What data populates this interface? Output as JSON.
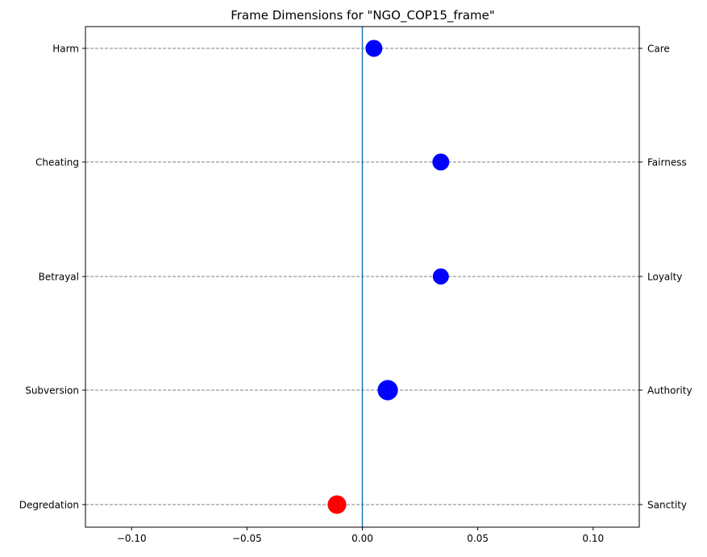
{
  "chart_data": {
    "type": "scatter",
    "title": "Frame Dimensions for \"NGO_COP15_frame\"",
    "xlabel": "",
    "ylabel": "",
    "xlim": [
      -0.12,
      0.12
    ],
    "xticks": [
      -0.1,
      -0.05,
      0.0,
      0.05,
      0.1
    ],
    "xtick_labels": [
      "−0.10",
      "−0.05",
      "0.00",
      "0.05",
      "0.10"
    ],
    "grid": "horizontal dashed lines at each dimension",
    "reference_line": {
      "x": 0,
      "color": "#1f77b4"
    },
    "left_labels": [
      "Harm",
      "Cheating",
      "Betrayal",
      "Subversion",
      "Degredation"
    ],
    "right_labels": [
      "Care",
      "Fairness",
      "Loyalty",
      "Authority",
      "Sanctity"
    ],
    "points": [
      {
        "x": 0.005,
        "relative_size": 1.0,
        "color": "#0000ff"
      },
      {
        "x": 0.034,
        "relative_size": 1.0,
        "color": "#0000ff"
      },
      {
        "x": 0.034,
        "relative_size": 0.95,
        "color": "#0000ff"
      },
      {
        "x": 0.011,
        "relative_size": 1.2,
        "color": "#0000ff"
      },
      {
        "x": -0.011,
        "relative_size": 1.1,
        "color": "#ff0000"
      }
    ],
    "colors": {
      "positive": "#0000ff",
      "negative": "#ff0000",
      "zero_line": "#1f77b4",
      "grid": "#808080"
    }
  }
}
